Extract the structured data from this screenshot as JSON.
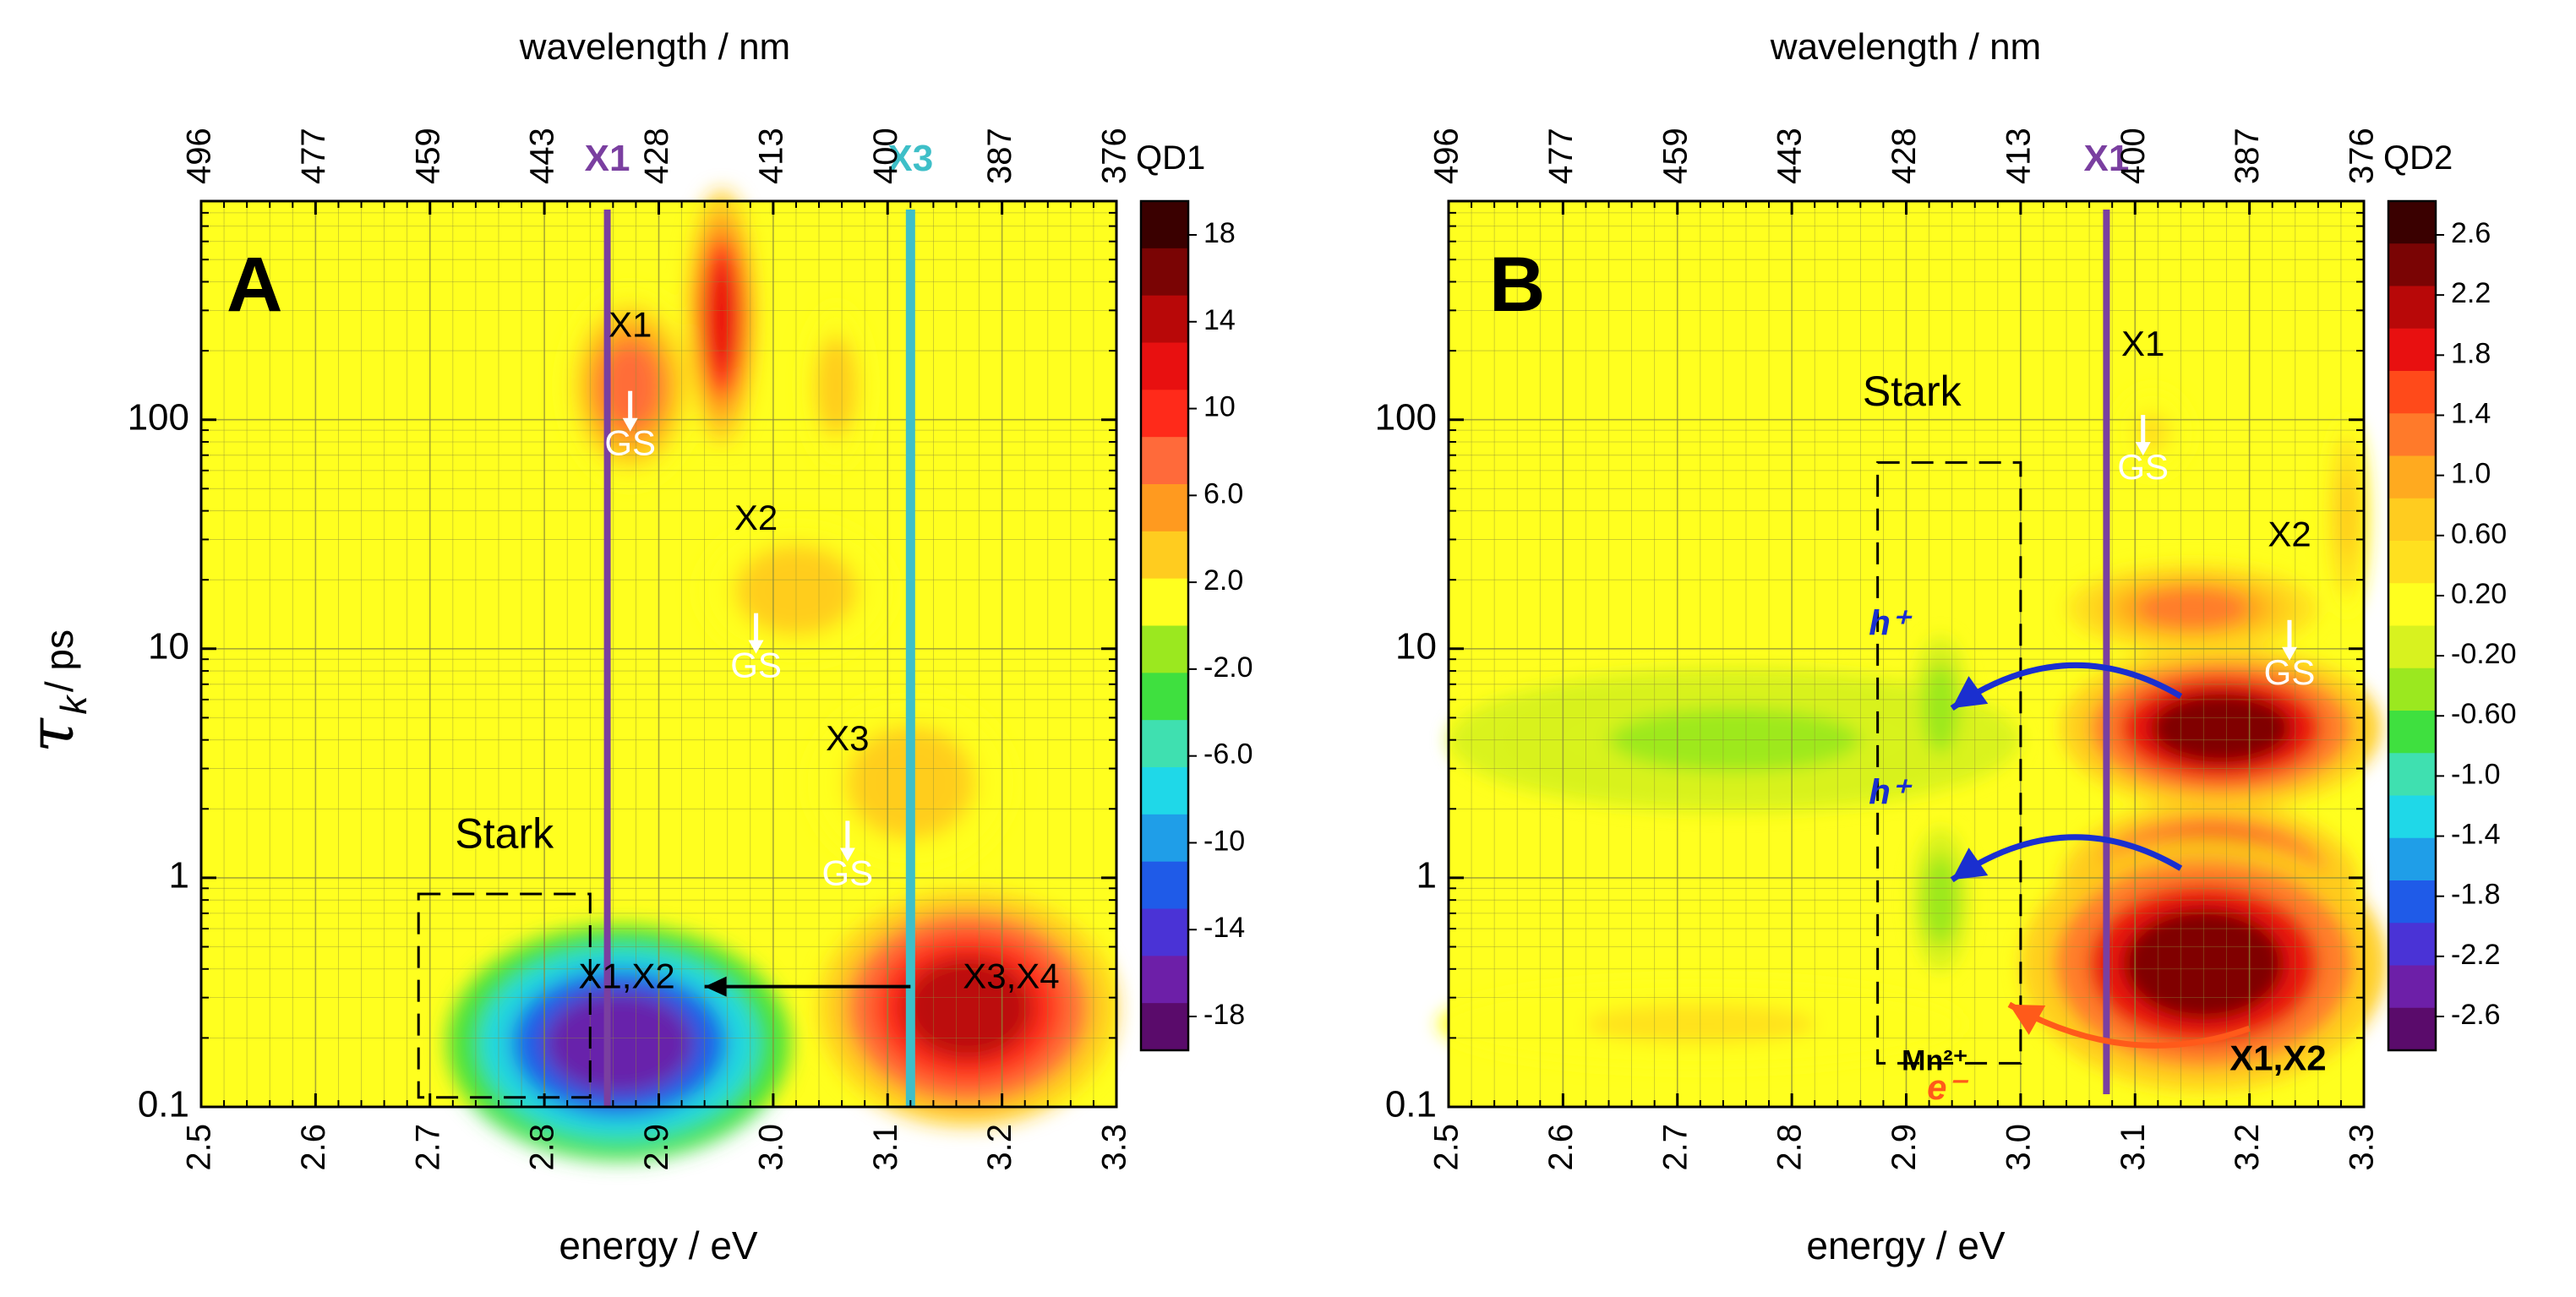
{
  "chart_data": [
    {
      "type": "heatmap",
      "panel_label": "A",
      "top_axis_title": "wavelength / nm",
      "top_ticks": [
        "496",
        "477",
        "459",
        "443",
        "428",
        "413",
        "400",
        "387",
        "376"
      ],
      "top_tick_energies": [
        2.5,
        2.6,
        2.7,
        2.8,
        2.9,
        3.0,
        3.1,
        3.2,
        3.3
      ],
      "xlabel": "energy / eV",
      "xlim": [
        2.5,
        3.3
      ],
      "xticks": [
        "2.5",
        "2.6",
        "2.7",
        "2.8",
        "2.9",
        "3.0",
        "3.1",
        "3.2",
        "3.3"
      ],
      "ylabel_main": "τ",
      "ylabel_sub": "k",
      "ylabel_rest": " / ps",
      "ylim": [
        0.1,
        900
      ],
      "yscale": "log",
      "yticks": [
        "0.1",
        "1",
        "10",
        "100"
      ],
      "colorbar_title": "QD1",
      "colorbar_ticks": [
        "18",
        "14",
        "10",
        "6.0",
        "2.0",
        "-2.0",
        "-6.0",
        "-10",
        "-14",
        "-18"
      ],
      "marker_lines": [
        {
          "label": "X1",
          "energy": 2.855,
          "color": "#7a3fa0"
        },
        {
          "label": "X3",
          "energy": 3.12,
          "color": "#3ebfc8"
        }
      ],
      "features": [
        {
          "energy": 2.875,
          "tau": 140,
          "rx": 0.06,
          "ry": 0.11,
          "value": 8
        },
        {
          "energy": 2.955,
          "tau": 280,
          "rx": 0.03,
          "ry": 0.14,
          "value": 12
        },
        {
          "energy": 3.055,
          "tau": 140,
          "rx": 0.03,
          "ry": 0.09,
          "value": 3
        },
        {
          "energy": 3.02,
          "tau": 18,
          "rx": 0.085,
          "ry": 0.08,
          "value": 3
        },
        {
          "energy": 3.12,
          "tau": 2.6,
          "rx": 0.09,
          "ry": 0.1,
          "value": 3
        },
        {
          "energy": 2.865,
          "tau": 0.19,
          "rx": 0.15,
          "ry": 0.13,
          "value": -16
        },
        {
          "energy": 3.17,
          "tau": 0.27,
          "rx": 0.13,
          "ry": 0.13,
          "value": 14
        }
      ],
      "annotations": [
        {
          "text": "X1",
          "energy": 2.875,
          "tau": 230
        },
        {
          "text": "GS",
          "energy": 2.875,
          "tau": 70,
          "color": "#ffffff"
        },
        {
          "text": "X2",
          "energy": 2.985,
          "tau": 33
        },
        {
          "text": "GS",
          "energy": 2.985,
          "tau": 7.5,
          "color": "#ffffff"
        },
        {
          "text": "X3",
          "energy": 3.065,
          "tau": 3.6
        },
        {
          "text": "GS",
          "energy": 3.065,
          "tau": 0.93,
          "color": "#ffffff"
        },
        {
          "text": "Stark",
          "energy": 2.765,
          "tau": 1.35
        },
        {
          "text": "X1,X2",
          "energy": 2.872,
          "tau": 0.33
        },
        {
          "text": "X3,X4",
          "energy": 3.208,
          "tau": 0.33
        }
      ],
      "stark_box": {
        "e1": 2.69,
        "e2": 2.84,
        "tau1": 0.11,
        "tau2": 0.85
      },
      "arrows": [
        {
          "from": [
            3.12,
            0.335
          ],
          "to": [
            2.94,
            0.335
          ],
          "color": "#000000"
        }
      ]
    },
    {
      "type": "heatmap",
      "panel_label": "B",
      "top_axis_title": "wavelength / nm",
      "top_ticks": [
        "496",
        "477",
        "459",
        "443",
        "428",
        "413",
        "400",
        "387",
        "376"
      ],
      "top_tick_energies": [
        2.5,
        2.6,
        2.7,
        2.8,
        2.9,
        3.0,
        3.1,
        3.2,
        3.3
      ],
      "xlabel": "energy / eV",
      "xlim": [
        2.5,
        3.3
      ],
      "xticks": [
        "2.5",
        "2.6",
        "2.7",
        "2.8",
        "2.9",
        "3.0",
        "3.1",
        "3.2",
        "3.3"
      ],
      "ylim": [
        0.1,
        900
      ],
      "yscale": "log",
      "yticks": [
        "0.1",
        "1",
        "10",
        "100"
      ],
      "colorbar_title": "QD2",
      "colorbar_ticks": [
        "2.6",
        "2.2",
        "1.8",
        "1.4",
        "1.0",
        "0.60",
        "0.20",
        "-0.20",
        "-0.60",
        "-1.0",
        "-1.4",
        "-1.8",
        "-2.2",
        "-2.6"
      ],
      "marker_lines": [
        {
          "label": "X1",
          "energy": 3.075,
          "color": "#7a3fa0"
        }
      ],
      "features": [
        {
          "energy": 3.175,
          "tau": 4.5,
          "rx": 0.14,
          "ry": 0.09,
          "value": 2.5
        },
        {
          "energy": 3.165,
          "tau": 0.95,
          "rx": 0.13,
          "ry": 0.09,
          "value": 2.3
        },
        {
          "energy": 3.16,
          "tau": 0.42,
          "rx": 0.16,
          "ry": 0.14,
          "value": 2.5
        },
        {
          "energy": 3.15,
          "tau": 15,
          "rx": 0.11,
          "ry": 0.05,
          "value": 1.2
        },
        {
          "energy": 3.285,
          "tau": 38,
          "rx": 0.02,
          "ry": 0.11,
          "value": 0.7
        },
        {
          "energy": 3.115,
          "tau": 88,
          "rx": 0.035,
          "ry": 0.05,
          "value": 0.3
        },
        {
          "energy": 2.72,
          "tau": 0.23,
          "rx": 0.23,
          "ry": 0.05,
          "value": 0.3
        },
        {
          "energy": 2.75,
          "tau": 4.0,
          "rx": 0.25,
          "ry": 0.08,
          "value": -0.3
        },
        {
          "energy": 2.93,
          "tau": 5.5,
          "rx": 0.025,
          "ry": 0.08,
          "value": -0.5
        },
        {
          "energy": 2.93,
          "tau": 0.8,
          "rx": 0.025,
          "ry": 0.08,
          "value": -0.5
        }
      ],
      "annotations": [
        {
          "text": "X1",
          "energy": 3.107,
          "tau": 190
        },
        {
          "text": "GS",
          "energy": 3.107,
          "tau": 55,
          "color": "#ffffff"
        },
        {
          "text": "X2",
          "energy": 3.235,
          "tau": 28
        },
        {
          "text": "GS",
          "energy": 3.235,
          "tau": 7.0,
          "color": "#ffffff"
        },
        {
          "text": "Stark",
          "energy": 2.905,
          "tau": 115
        },
        {
          "text": "h⁺",
          "energy": 2.885,
          "tau": 11.5,
          "color": "#1a2fcf"
        },
        {
          "text": "h⁺",
          "energy": 2.885,
          "tau": 2.1,
          "color": "#1a2fcf"
        },
        {
          "text": "Mn²⁺",
          "energy": 2.925,
          "tau": 0.145
        },
        {
          "text": "e⁻",
          "energy": 2.935,
          "tau": 0.108,
          "color": "#ff5a1a"
        },
        {
          "text": "X1,X2",
          "energy": 3.225,
          "tau": 0.145
        }
      ],
      "stark_box": {
        "e1": 2.875,
        "e2": 3.0,
        "tau1": 0.155,
        "tau2": 65
      },
      "arrows": [
        {
          "type": "curve",
          "from": [
            3.14,
            6.2
          ],
          "to": [
            2.94,
            5.5
          ],
          "color": "#1a2fcf"
        },
        {
          "type": "curve",
          "from": [
            3.14,
            1.1
          ],
          "to": [
            2.94,
            0.98
          ],
          "color": "#1a2fcf"
        },
        {
          "type": "curve",
          "from": [
            3.2,
            0.22
          ],
          "to": [
            2.99,
            0.28
          ],
          "color": "#ff5a1a"
        }
      ]
    }
  ]
}
